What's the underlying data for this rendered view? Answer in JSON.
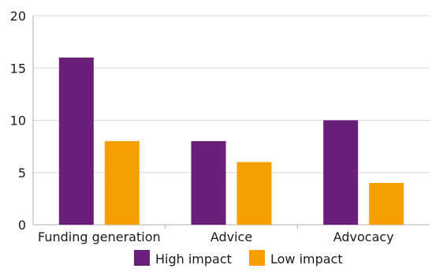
{
  "chart_data": {
    "type": "bar",
    "categories": [
      "Funding generation",
      "Advice",
      "Advocacy"
    ],
    "series": [
      {
        "name": "High impact",
        "values": [
          16,
          8,
          10
        ],
        "color": "#6a1f7a"
      },
      {
        "name": "Low impact",
        "values": [
          8,
          6,
          4
        ],
        "color": "#f5a000"
      }
    ],
    "ylim": [
      0,
      20
    ],
    "yticks": [
      0,
      5,
      10,
      15,
      20
    ],
    "grid": "horizontal",
    "legend": "bottom-center",
    "axis_color": "#b0b0b0"
  }
}
